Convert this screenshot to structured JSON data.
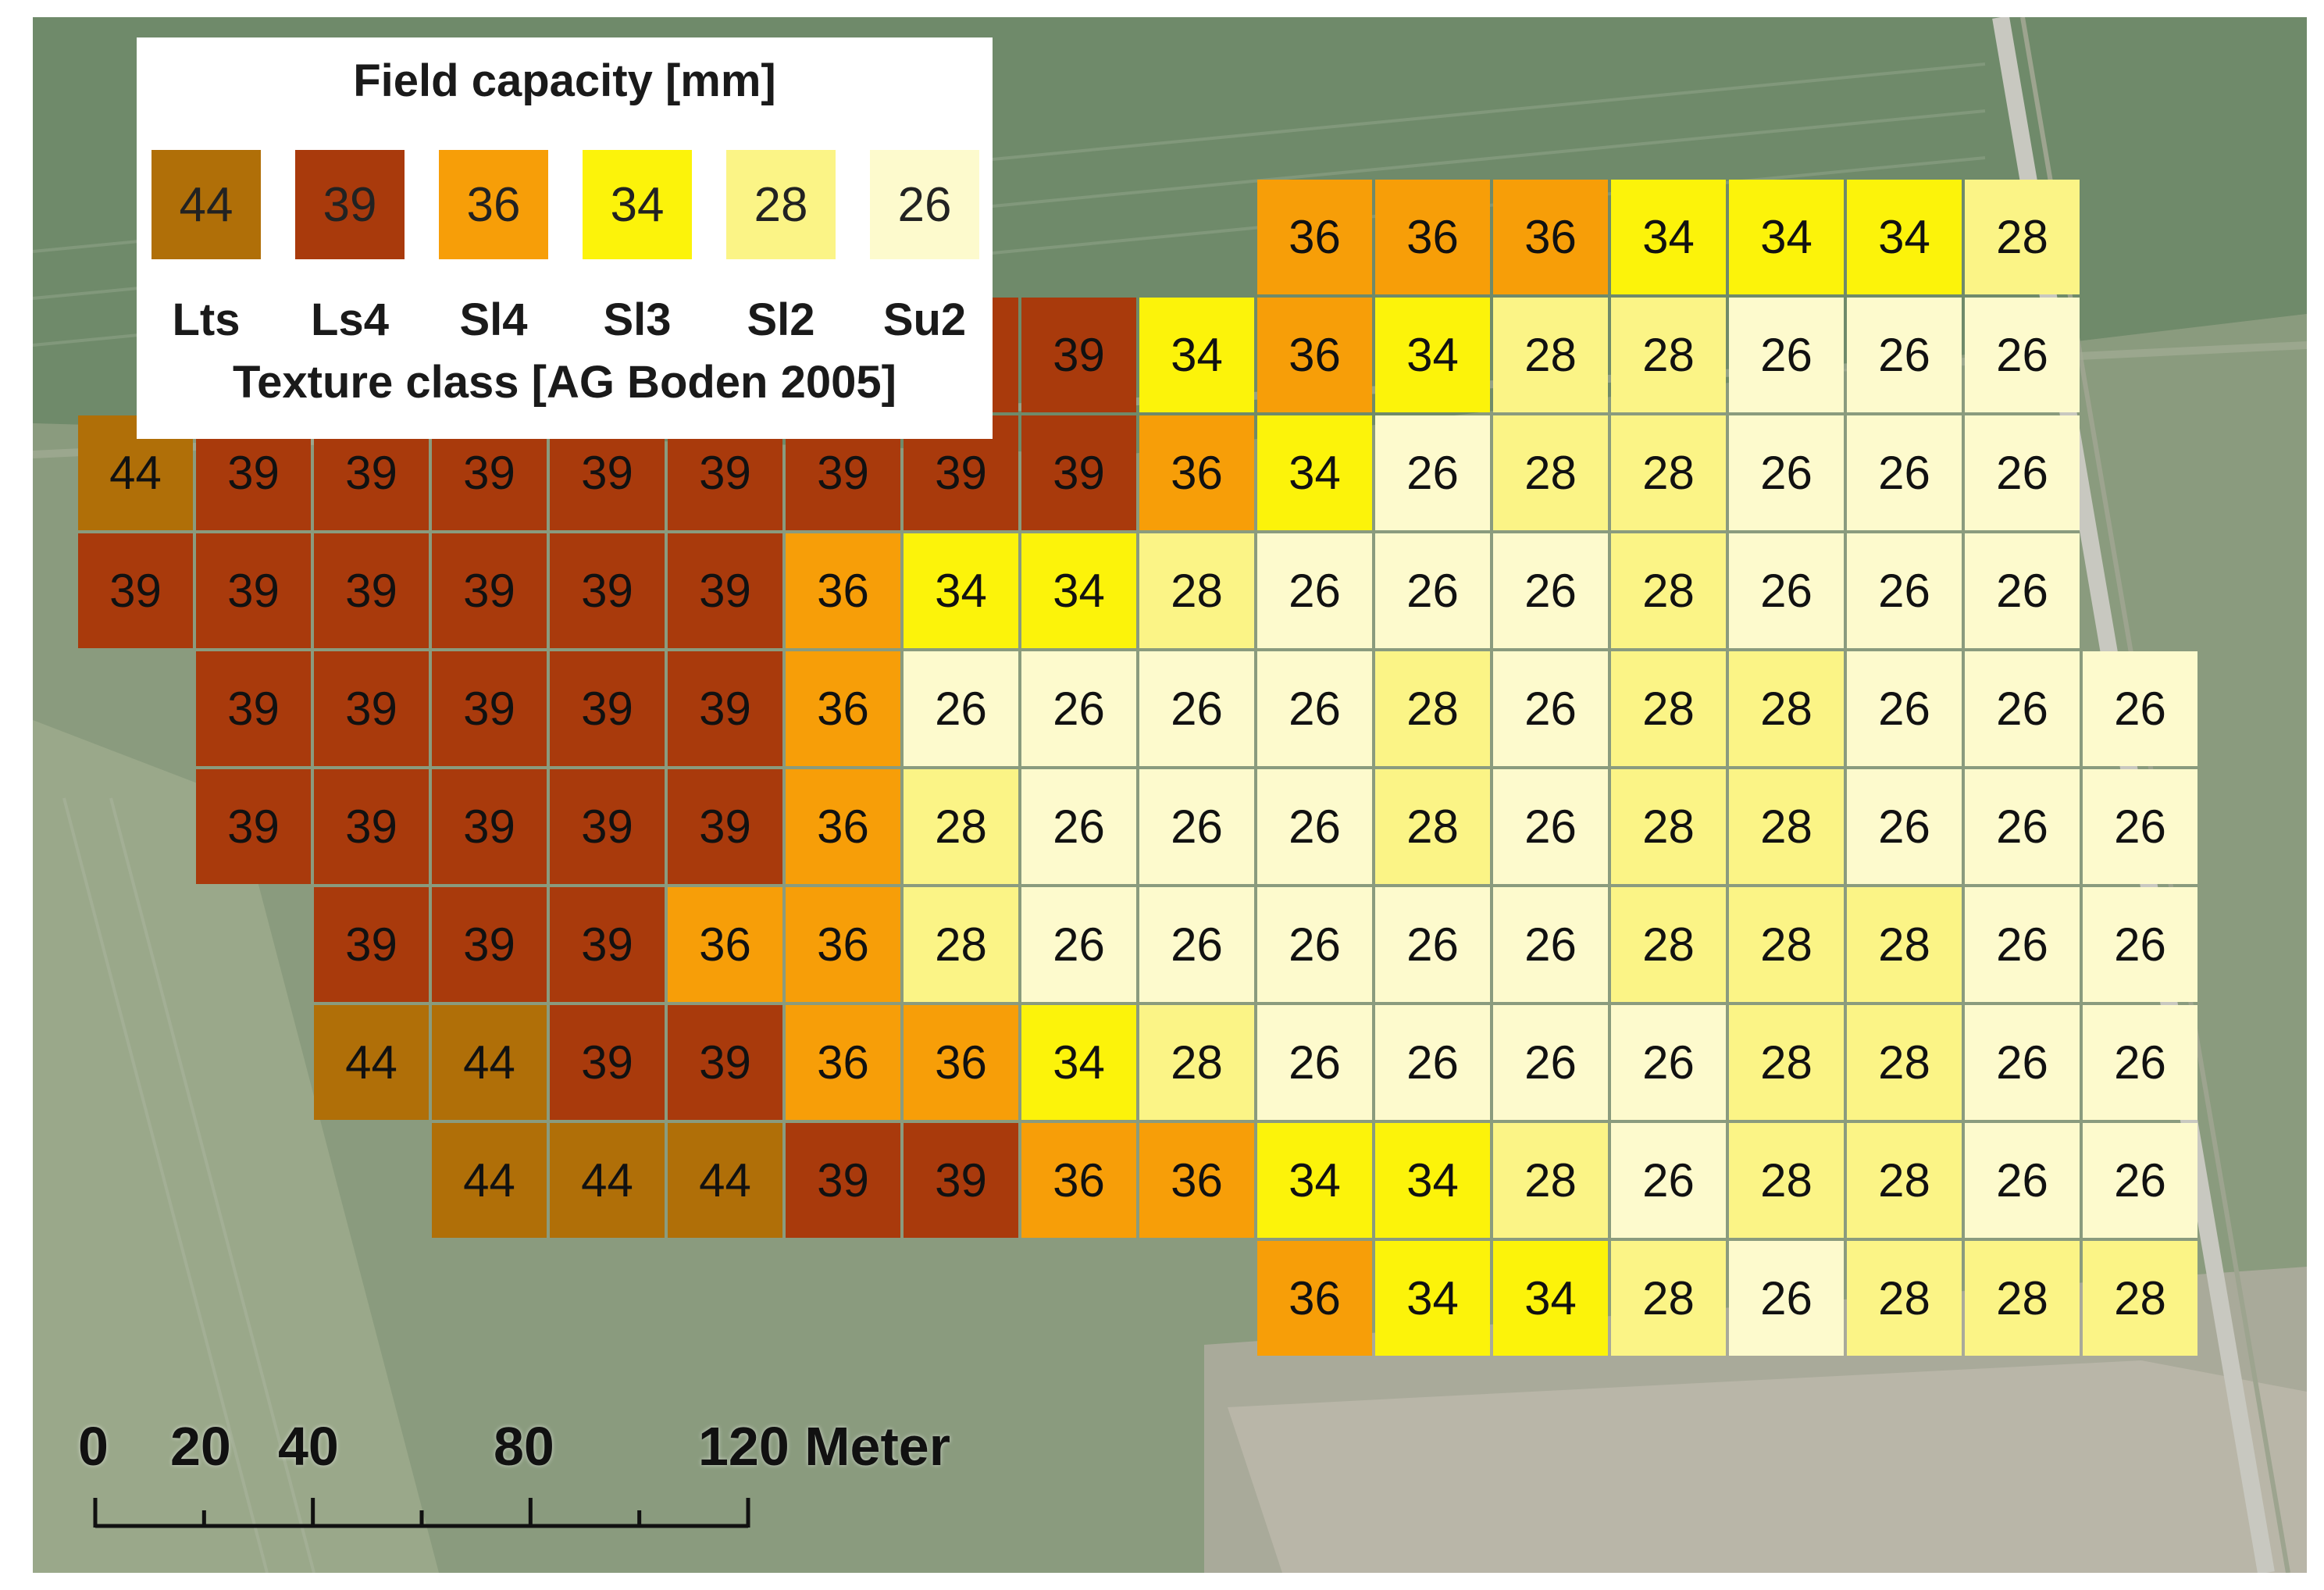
{
  "legend": {
    "title": "Field capacity [mm]",
    "subtitle": "Texture class [AG Boden 2005]",
    "items": [
      {
        "value": "44",
        "class": "Lts",
        "color": "#b06f08"
      },
      {
        "value": "39",
        "class": "Ls4",
        "color": "#a93a0c"
      },
      {
        "value": "36",
        "class": "Sl4",
        "color": "#f79e08"
      },
      {
        "value": "34",
        "class": "Sl3",
        "color": "#fcf30a"
      },
      {
        "value": "28",
        "class": "Sl2",
        "color": "#fbf486"
      },
      {
        "value": "26",
        "class": "Su2",
        "color": "#fdfacd"
      }
    ]
  },
  "scalebar": {
    "labels": [
      "0",
      "20",
      "40",
      "80",
      "120 Meter"
    ],
    "ticks_m": [
      0,
      20,
      40,
      60,
      80,
      100,
      120
    ]
  },
  "grid_start_col": [
    10,
    4,
    0,
    0,
    1,
    1,
    2,
    2,
    3,
    10
  ],
  "grid_rows": [
    [
      "36",
      "36",
      "36",
      "34",
      "34",
      "34",
      "28"
    ],
    [
      "39",
      "39",
      "39",
      "39",
      "39",
      "34",
      "36",
      "34",
      "28",
      "28",
      "26",
      "26",
      "26"
    ],
    [
      "44",
      "39",
      "39",
      "39",
      "39",
      "39",
      "39",
      "39",
      "39",
      "36",
      "34",
      "26",
      "28",
      "28",
      "26",
      "26",
      "26"
    ],
    [
      "39",
      "39",
      "39",
      "39",
      "39",
      "39",
      "36",
      "34",
      "34",
      "28",
      "26",
      "26",
      "26",
      "28",
      "26",
      "26",
      "26"
    ],
    [
      "39",
      "39",
      "39",
      "39",
      "39",
      "36",
      "26",
      "26",
      "26",
      "26",
      "28",
      "26",
      "28",
      "28",
      "26",
      "26",
      "26"
    ],
    [
      "39",
      "39",
      "39",
      "39",
      "39",
      "36",
      "28",
      "26",
      "26",
      "26",
      "28",
      "26",
      "28",
      "28",
      "26",
      "26",
      "26"
    ],
    [
      "39",
      "39",
      "39",
      "36",
      "36",
      "28",
      "26",
      "26",
      "26",
      "26",
      "26",
      "28",
      "28",
      "28",
      "26",
      "26"
    ],
    [
      "44",
      "44",
      "39",
      "39",
      "36",
      "36",
      "34",
      "28",
      "26",
      "26",
      "26",
      "26",
      "28",
      "28",
      "26",
      "26"
    ],
    [
      "44",
      "44",
      "44",
      "39",
      "39",
      "36",
      "36",
      "34",
      "34",
      "28",
      "26",
      "28",
      "28",
      "26",
      "26"
    ],
    [
      "36",
      "34",
      "34",
      "28",
      "26",
      "28",
      "28",
      "28"
    ]
  ]
}
